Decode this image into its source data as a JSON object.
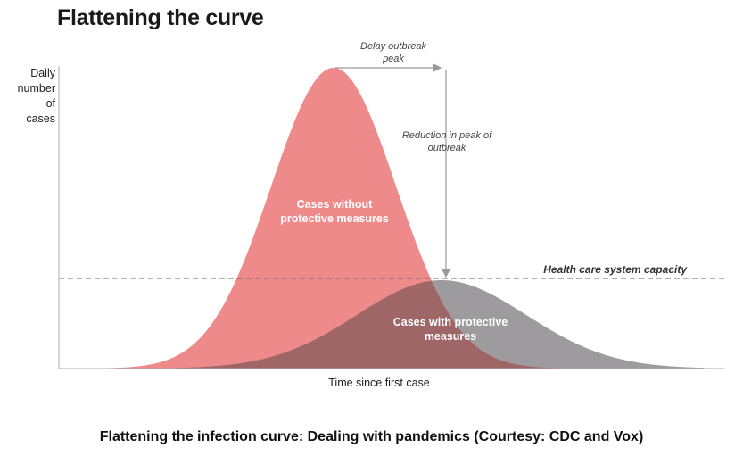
{
  "title": "Flattening the curve",
  "caption": "Flattening the infection curve: Dealing with pandemics (Courtesy: CDC and Vox)",
  "axes": {
    "y_label_lines": [
      "Daily",
      "number of",
      "cases"
    ],
    "x_label": "Time since first case"
  },
  "annotations": {
    "delay_lines": [
      "Delay outbreak",
      "peak"
    ],
    "reduction_lines": [
      "Reduction in peak of",
      "outbreak"
    ],
    "capacity": "Health care system capacity"
  },
  "curves": {
    "without": {
      "label_lines": [
        "Cases without",
        "protective measures"
      ],
      "color": "#ef8a8b"
    },
    "with": {
      "label_lines": [
        "Cases with protective",
        "measures"
      ],
      "color": "#9d9b9e"
    },
    "overlap_color": "#9e6667"
  },
  "colors": {
    "axis": "#aaaaaa",
    "arrow": "#999999",
    "capacity_line": "#666666"
  }
}
